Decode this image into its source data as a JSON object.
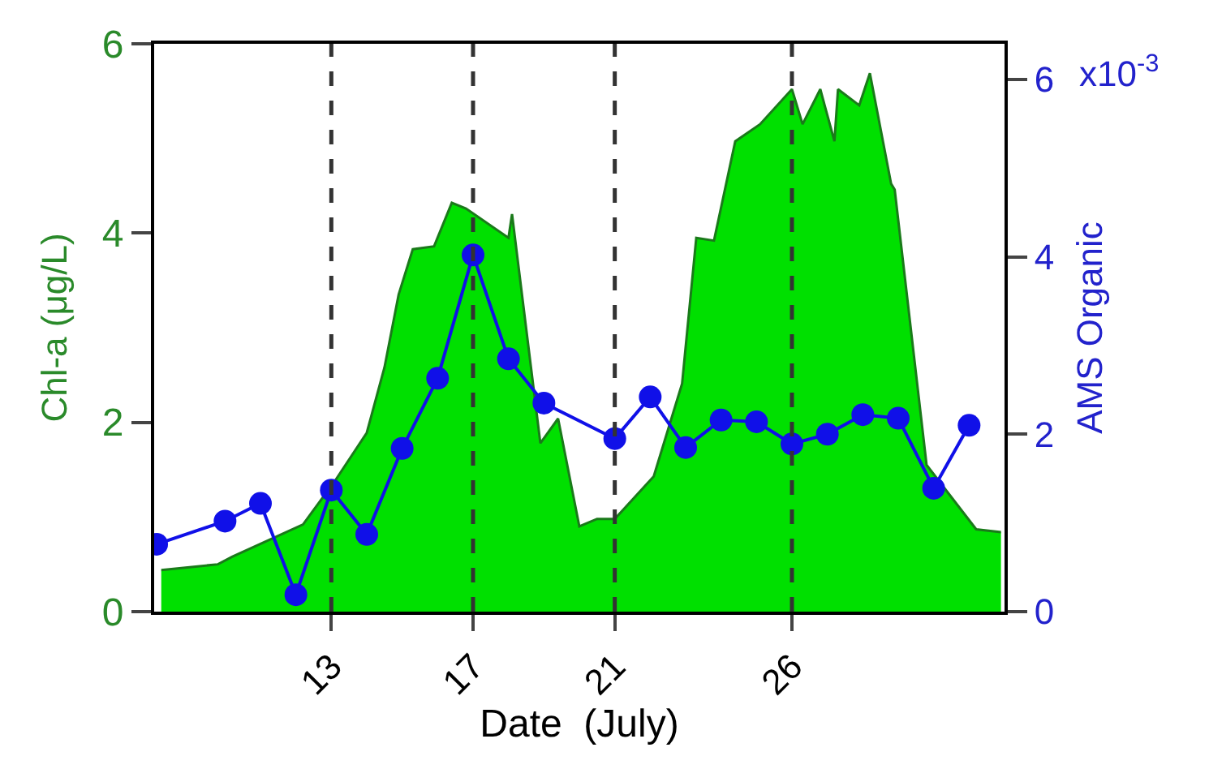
{
  "chart_data": {
    "type": "area",
    "xlabel": "Date  (July)",
    "ylabel": "Chl-a (μg/L)",
    "y2label": "AMS Organic",
    "xlim": [
      8,
      32
    ],
    "xticks": [
      13,
      17,
      21,
      26
    ],
    "ylim": [
      0,
      6
    ],
    "yticks": [
      0,
      2,
      4,
      6
    ],
    "y2lim": [
      0,
      6.4
    ],
    "y2ticks": [
      0,
      2,
      4,
      6
    ],
    "annotations": [
      "x10$^{-3}$"
    ],
    "series": [
      {
        "color": "#00e000",
        "x": [
          8.2,
          9.8,
          10.2,
          12.2,
          13.1,
          14.0,
          14.5,
          14.9,
          15.3,
          15.9,
          16.4,
          16.8,
          18.0,
          18.1,
          18.9,
          19.4,
          20.0,
          20.5,
          21.0,
          22.1,
          22.9,
          23.3,
          23.8,
          24.4,
          25.1,
          26.0,
          26.3,
          26.8,
          27.2,
          27.3,
          27.9,
          28.2,
          28.8,
          28.9,
          29.8,
          31.2,
          31.9
        ],
        "values": [
          0.44,
          0.5,
          0.58,
          0.92,
          1.38,
          1.89,
          2.58,
          3.35,
          3.83,
          3.86,
          4.32,
          4.26,
          3.95,
          4.2,
          1.78,
          2.04,
          0.9,
          0.98,
          0.98,
          1.43,
          2.41,
          3.95,
          3.92,
          4.97,
          5.15,
          5.52,
          5.15,
          5.52,
          4.97,
          5.52,
          5.35,
          5.69,
          4.52,
          4.46,
          1.55,
          0.87,
          0.84
        ]
      },
      {
        "type": "line",
        "axis": "y2",
        "color": "#1010e8",
        "marker": "circle",
        "line_style": "solid",
        "x": [
          8.07,
          10,
          11,
          12,
          13,
          14,
          15,
          16,
          17,
          18,
          19,
          21,
          22,
          23,
          24,
          25,
          26,
          27,
          28,
          29,
          30,
          31
        ],
        "values": [
          0.76,
          1.02,
          1.22,
          0.19,
          1.37,
          0.87,
          1.84,
          2.63,
          4.02,
          2.85,
          2.35,
          1.95,
          2.42,
          1.85,
          2.16,
          2.14,
          1.89,
          2.0,
          2.22,
          2.18,
          1.39,
          2.1
        ]
      }
    ],
    "ref_lines": [
      {
        "axis": "x",
        "value": 13,
        "line_style": "dashed",
        "color": "#333333"
      },
      {
        "axis": "x",
        "value": 17,
        "line_style": "dashed",
        "color": "#333333"
      },
      {
        "axis": "x",
        "value": 21,
        "line_style": "dashed",
        "color": "#333333"
      },
      {
        "axis": "x",
        "value": 26,
        "line_style": "dashed",
        "color": "#333333"
      }
    ]
  }
}
